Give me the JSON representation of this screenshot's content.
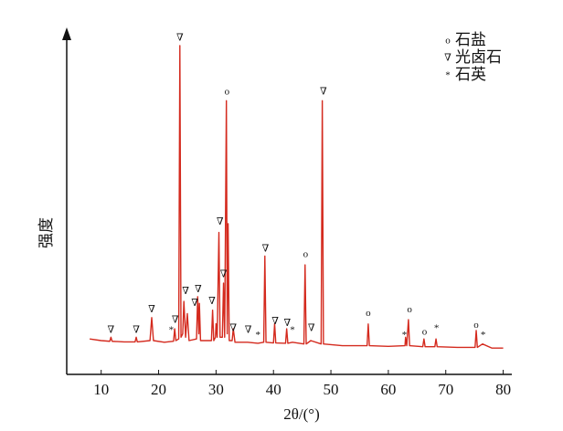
{
  "chart_data": {
    "type": "line",
    "xlabel": "2θ/(°)",
    "ylabel": "强度",
    "xlim": [
      4,
      81.5
    ],
    "ylim": [
      0,
      100
    ],
    "xticks": [
      10,
      20,
      30,
      40,
      50,
      60,
      70,
      80
    ],
    "x": [
      8,
      10,
      11.5,
      11.7,
      11.9,
      14,
      15.9,
      16.1,
      16.3,
      18.5,
      18.8,
      19.1,
      21,
      22.6,
      22.8,
      23.0,
      23.5,
      23.7,
      23.9,
      24.2,
      24.4,
      24.7,
      25.0,
      25.3,
      26.6,
      26.8,
      27.0,
      27.1,
      27.3,
      29.2,
      29.4,
      29.6,
      29.9,
      30.0,
      30.2,
      30.5,
      30.7,
      31.1,
      31.3,
      31.5,
      31.8,
      31.95,
      32.1,
      32.3,
      32.8,
      33.0,
      33.3,
      35.5,
      37.3,
      38.3,
      38.5,
      38.7,
      40.0,
      40.2,
      40.4,
      42.1,
      42.3,
      42.5,
      43.3,
      45.3,
      45.5,
      45.7,
      46.5,
      48.3,
      48.5,
      48.7,
      52,
      56.3,
      56.5,
      56.7,
      60,
      62.9,
      63.0,
      63.2,
      63.5,
      63.7,
      66.0,
      66.2,
      66.4,
      68.1,
      68.3,
      68.5,
      72,
      75.1,
      75.3,
      75.5,
      76.4,
      78,
      80
    ],
    "series": [
      {
        "color": "#d42a1e",
        "values": [
          10.5,
          10,
          9.8,
          11,
          9.8,
          9.6,
          9.6,
          11,
          9.6,
          10,
          16.8,
          10,
          9.5,
          9.8,
          13.5,
          10,
          10.5,
          97.3,
          11,
          12,
          21.6,
          11,
          18,
          10,
          10.5,
          23,
          12,
          21,
          10,
          10,
          19,
          10,
          11,
          15,
          11,
          42,
          11,
          11,
          27,
          11,
          81,
          12,
          44.6,
          10,
          10,
          13.5,
          9.5,
          9.5,
          9.2,
          9.5,
          35,
          9.5,
          9.3,
          15,
          9.3,
          9.2,
          13.5,
          9.2,
          9.5,
          9,
          32.4,
          9,
          10,
          9,
          81,
          9,
          8.5,
          8.5,
          14.9,
          8.5,
          8.3,
          8.5,
          11,
          8.5,
          16.2,
          8.5,
          8.2,
          10.5,
          8.2,
          8.2,
          10.5,
          8.2,
          8,
          8,
          13,
          8,
          9,
          7.8,
          7.8
        ]
      }
    ],
    "legend": [
      {
        "symbol": "o",
        "label": "石盐"
      },
      {
        "symbol": "∇",
        "label": "光卤石"
      },
      {
        "symbol": "*",
        "label": "石英"
      }
    ],
    "annotations": [
      {
        "label": "∇",
        "x": 11.7,
        "y": 13
      },
      {
        "label": "∇",
        "x": 16.1,
        "y": 13
      },
      {
        "label": "∇",
        "x": 18.8,
        "y": 19
      },
      {
        "label": "*",
        "x": 22.2,
        "y": 13
      },
      {
        "label": "∇",
        "x": 22.9,
        "y": 16
      },
      {
        "label": "∇",
        "x": 23.7,
        "y": 99.5
      },
      {
        "label": "∇",
        "x": 24.7,
        "y": 24.5
      },
      {
        "label": "∇",
        "x": 26.9,
        "y": 25
      },
      {
        "label": "∇",
        "x": 26.3,
        "y": 21
      },
      {
        "label": "∇",
        "x": 29.3,
        "y": 21.5
      },
      {
        "label": "∇",
        "x": 30.7,
        "y": 45
      },
      {
        "label": "∇",
        "x": 31.3,
        "y": 29.5
      },
      {
        "label": "o",
        "x": 31.9,
        "y": 83.5
      },
      {
        "label": "∇",
        "x": 33.0,
        "y": 13.5
      },
      {
        "label": "∇",
        "x": 35.6,
        "y": 13
      },
      {
        "label": "*",
        "x": 37.3,
        "y": 11.5
      },
      {
        "label": "∇",
        "x": 38.6,
        "y": 37
      },
      {
        "label": "∇",
        "x": 40.3,
        "y": 15.5
      },
      {
        "label": "∇",
        "x": 42.4,
        "y": 15
      },
      {
        "label": "*",
        "x": 43.3,
        "y": 13
      },
      {
        "label": "o",
        "x": 45.6,
        "y": 35.4
      },
      {
        "label": "∇",
        "x": 46.6,
        "y": 13.5
      },
      {
        "label": "∇",
        "x": 48.7,
        "y": 83.5
      },
      {
        "label": "o",
        "x": 56.5,
        "y": 18
      },
      {
        "label": "*",
        "x": 62.8,
        "y": 11.5
      },
      {
        "label": "o",
        "x": 63.7,
        "y": 19
      },
      {
        "label": "o",
        "x": 66.3,
        "y": 12.5
      },
      {
        "label": "*",
        "x": 68.4,
        "y": 13.5
      },
      {
        "label": "o",
        "x": 75.3,
        "y": 14.5
      },
      {
        "label": "*",
        "x": 76.5,
        "y": 11.5
      }
    ]
  }
}
